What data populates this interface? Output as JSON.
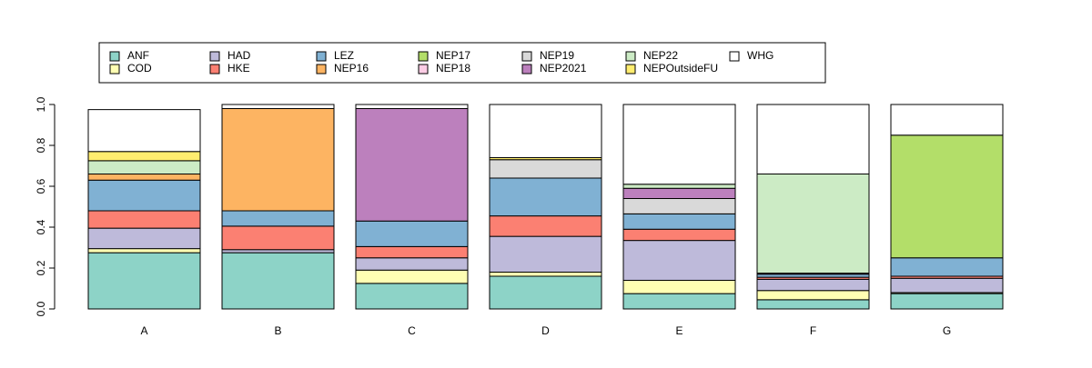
{
  "chart_data": {
    "type": "bar",
    "stacked": true,
    "categories": [
      "A",
      "B",
      "C",
      "D",
      "E",
      "F",
      "G"
    ],
    "ylim": [
      0,
      1
    ],
    "yticks": [
      "0.0",
      "0.2",
      "0.4",
      "0.6",
      "0.8",
      "1.0"
    ],
    "title": "",
    "xlabel": "",
    "ylabel": "",
    "grid": false,
    "legend_position": "top",
    "series": [
      {
        "name": "ANF",
        "color": "#8DD3C7",
        "values": [
          0.275,
          0.275,
          0.125,
          0.16,
          0.075,
          0.045,
          0.075
        ]
      },
      {
        "name": "COD",
        "color": "#FFFFB3",
        "values": [
          0.02,
          0.0,
          0.065,
          0.02,
          0.065,
          0.045,
          0.005
        ]
      },
      {
        "name": "HAD",
        "color": "#BEBADA",
        "values": [
          0.1,
          0.015,
          0.06,
          0.175,
          0.195,
          0.055,
          0.07
        ]
      },
      {
        "name": "HKE",
        "color": "#FB8072",
        "values": [
          0.085,
          0.115,
          0.055,
          0.1,
          0.055,
          0.01,
          0.01
        ]
      },
      {
        "name": "LEZ",
        "color": "#80B1D3",
        "values": [
          0.15,
          0.075,
          0.125,
          0.185,
          0.075,
          0.015,
          0.09
        ]
      },
      {
        "name": "NEP16",
        "color": "#FDB462",
        "values": [
          0.03,
          0.5,
          0.0,
          0.0,
          0.0,
          0.0,
          0.0
        ]
      },
      {
        "name": "NEP17",
        "color": "#B3DE69",
        "values": [
          0.0,
          0.0,
          0.0,
          0.0,
          0.0,
          0.0,
          0.6
        ]
      },
      {
        "name": "NEP18",
        "color": "#FCCDE5",
        "values": [
          0.0,
          0.0,
          0.0,
          0.0,
          0.0,
          0.0,
          0.0
        ]
      },
      {
        "name": "NEP19",
        "color": "#D9D9D9",
        "values": [
          0.0,
          0.0,
          0.0,
          0.09,
          0.075,
          0.0,
          0.0
        ]
      },
      {
        "name": "NEP2021",
        "color": "#BC80BD",
        "values": [
          0.0,
          0.0,
          0.55,
          0.0,
          0.05,
          0.005,
          0.0
        ]
      },
      {
        "name": "NEP22",
        "color": "#CCEBC5",
        "values": [
          0.065,
          0.0,
          0.0,
          0.0,
          0.02,
          0.485,
          0.0
        ]
      },
      {
        "name": "NEPOutsideFU",
        "color": "#FFED6F",
        "values": [
          0.045,
          0.0,
          0.0,
          0.01,
          0.0,
          0.0,
          0.0
        ]
      },
      {
        "name": "WHG",
        "color": "#FFFFFF",
        "values": [
          0.205,
          0.02,
          0.02,
          0.26,
          0.39,
          0.34,
          0.15
        ]
      }
    ]
  }
}
